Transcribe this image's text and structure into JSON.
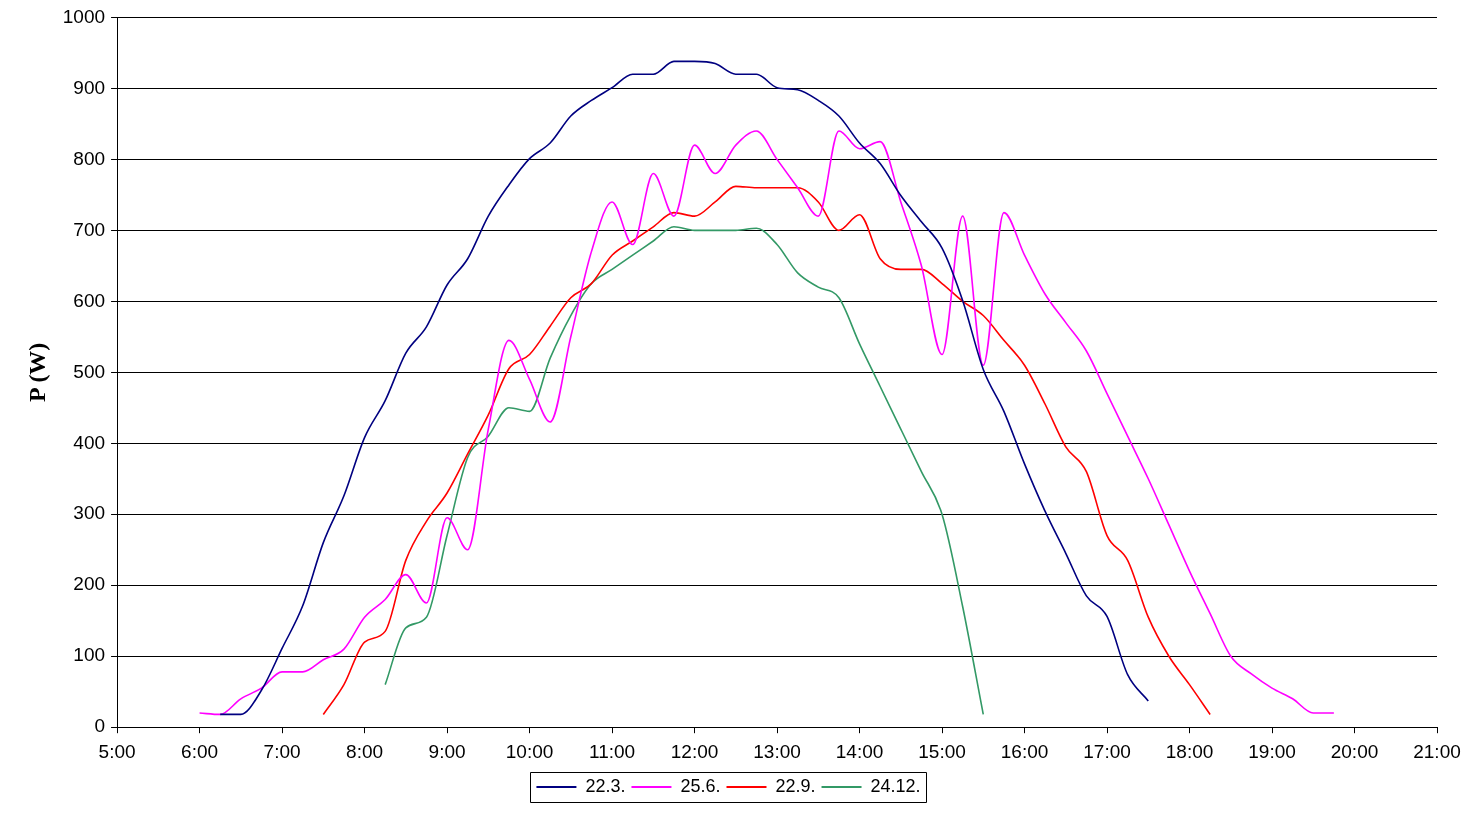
{
  "chart_data": {
    "type": "line",
    "ylabel": "P (W)",
    "xlim": [
      5,
      21
    ],
    "ylim": [
      0,
      1000
    ],
    "xticks": [
      {
        "value": 5,
        "label": "5:00"
      },
      {
        "value": 6,
        "label": "6:00"
      },
      {
        "value": 7,
        "label": "7:00"
      },
      {
        "value": 8,
        "label": "8:00"
      },
      {
        "value": 9,
        "label": "9:00"
      },
      {
        "value": 10,
        "label": "10:00"
      },
      {
        "value": 11,
        "label": "11:00"
      },
      {
        "value": 12,
        "label": "12:00"
      },
      {
        "value": 13,
        "label": "13:00"
      },
      {
        "value": 14,
        "label": "14:00"
      },
      {
        "value": 15,
        "label": "15:00"
      },
      {
        "value": 16,
        "label": "16:00"
      },
      {
        "value": 17,
        "label": "17:00"
      },
      {
        "value": 18,
        "label": "18:00"
      },
      {
        "value": 19,
        "label": "19:00"
      },
      {
        "value": 20,
        "label": "20:00"
      },
      {
        "value": 21,
        "label": "21:00"
      }
    ],
    "yticks": [
      0,
      100,
      200,
      300,
      400,
      500,
      600,
      700,
      800,
      900,
      1000
    ],
    "grid": "y",
    "legend": "bottom",
    "marker": "none",
    "line_style": "solid",
    "series": [
      {
        "name": "22.3.",
        "color": "#000080",
        "x": [
          6.25,
          6.5,
          6.75,
          7,
          7.25,
          7.5,
          7.75,
          8,
          8.25,
          8.5,
          8.75,
          9,
          9.25,
          9.5,
          9.75,
          10,
          10.25,
          10.5,
          10.75,
          11,
          11.25,
          11.5,
          11.75,
          12,
          12.25,
          12.5,
          12.75,
          13,
          13.25,
          13.5,
          13.75,
          14,
          14.25,
          14.5,
          14.75,
          15,
          15.25,
          15.5,
          15.75,
          16,
          16.25,
          16.5,
          16.75,
          17,
          17.25,
          17.5
        ],
        "values": [
          18,
          18,
          52,
          111,
          171,
          260,
          326,
          408,
          460,
          527,
          564,
          623,
          660,
          720,
          764,
          801,
          823,
          861,
          883,
          901,
          920,
          920,
          938,
          938,
          935,
          920,
          920,
          901,
          898,
          883,
          861,
          823,
          794,
          749,
          712,
          675,
          601,
          504,
          445,
          371,
          304,
          245,
          185,
          156,
          74,
          37
        ]
      },
      {
        "name": "25.6.",
        "color": "#ff00ff",
        "x": [
          6,
          6.25,
          6.5,
          6.75,
          7,
          7.25,
          7.5,
          7.75,
          8,
          8.25,
          8.5,
          8.75,
          9,
          9.25,
          9.5,
          9.75,
          10,
          10.25,
          10.5,
          10.75,
          11,
          11.25,
          11.5,
          11.75,
          12,
          12.25,
          12.5,
          12.75,
          13,
          13.25,
          13.5,
          13.75,
          14,
          14.25,
          14.5,
          14.75,
          15,
          15.25,
          15.5,
          15.75,
          16,
          16.25,
          16.5,
          16.75,
          17,
          17.25,
          17.5,
          17.75,
          18,
          18.25,
          18.5,
          18.75,
          19,
          19.25,
          19.5,
          19.75
        ],
        "values": [
          20,
          18,
          40,
          55,
          78,
          78,
          95,
          110,
          155,
          180,
          215,
          175,
          295,
          250,
          420,
          545,
          490,
          430,
          550,
          670,
          740,
          680,
          780,
          720,
          820,
          780,
          820,
          840,
          800,
          760,
          720,
          840,
          815,
          825,
          740,
          650,
          525,
          720,
          510,
          725,
          665,
          610,
          570,
          530,
          470,
          410,
          350,
          285,
          220,
          160,
          100,
          75,
          55,
          40,
          20,
          20
        ]
      },
      {
        "name": "22.9.",
        "color": "#ff0000",
        "x": [
          7.5,
          7.75,
          8,
          8.25,
          8.5,
          8.75,
          9,
          9.25,
          9.5,
          9.75,
          10,
          10.25,
          10.5,
          10.75,
          11,
          11.25,
          11.5,
          11.75,
          12,
          12.25,
          12.5,
          12.75,
          13,
          13.25,
          13.5,
          13.75,
          14,
          14.25,
          14.5,
          14.75,
          15,
          15.25,
          15.5,
          15.75,
          16,
          16.25,
          16.5,
          16.75,
          17,
          17.25,
          17.5,
          17.75,
          18,
          18.25
        ],
        "values": [
          18,
          60,
          120,
          135,
          235,
          290,
          330,
          385,
          440,
          505,
          525,
          565,
          605,
          625,
          665,
          685,
          705,
          725,
          720,
          740,
          762,
          760,
          760,
          760,
          740,
          700,
          722,
          660,
          645,
          645,
          625,
          600,
          580,
          545,
          510,
          455,
          395,
          360,
          270,
          235,
          155,
          100,
          60,
          18
        ]
      },
      {
        "name": "24.12.",
        "color": "#339966",
        "x": [
          8.25,
          8.5,
          8.75,
          9,
          9.25,
          9.5,
          9.75,
          10,
          10.25,
          10.5,
          10.75,
          11,
          11.25,
          11.5,
          11.75,
          12,
          12.25,
          12.5,
          12.75,
          13,
          13.25,
          13.5,
          13.75,
          14,
          14.25,
          14.5,
          14.75,
          15,
          15.25,
          15.5
        ],
        "values": [
          60,
          140,
          155,
          270,
          380,
          410,
          450,
          445,
          520,
          580,
          625,
          645,
          665,
          685,
          705,
          700,
          700,
          700,
          703,
          680,
          640,
          620,
          605,
          540,
          480,
          420,
          360,
          300,
          170,
          18
        ]
      }
    ]
  }
}
